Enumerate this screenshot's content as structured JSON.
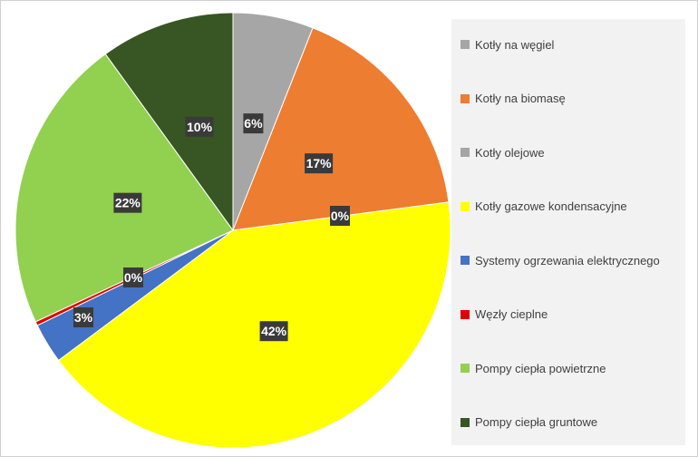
{
  "chart_data": {
    "type": "pie",
    "title": "",
    "legend": "right",
    "slices": [
      {
        "name": "Kotły na węgiel",
        "value": 6,
        "label": "6%",
        "color": "#a6a6a6"
      },
      {
        "name": "Kotły na biomasę",
        "value": 17,
        "label": "17%",
        "color": "#ed7d31"
      },
      {
        "name": "Kotły olejowe",
        "value": 0,
        "label": "0%",
        "color": "#a5a5a5"
      },
      {
        "name": "Kotły gazowe kondensacyjne",
        "value": 42,
        "label": "42%",
        "color": "#ffff00"
      },
      {
        "name": "Systemy ogrzewania elektrycznego",
        "value": 3,
        "label": "3%",
        "color": "#4472c4"
      },
      {
        "name": "Węzły cieplne",
        "value": 0.3,
        "label": "0%",
        "color": "#e00000"
      },
      {
        "name": "Pompy ciepła powietrzne",
        "value": 22,
        "label": "22%",
        "color": "#92d050"
      },
      {
        "name": "Pompy ciepła gruntowe",
        "value": 10,
        "label": "10%",
        "color": "#375623"
      }
    ]
  }
}
